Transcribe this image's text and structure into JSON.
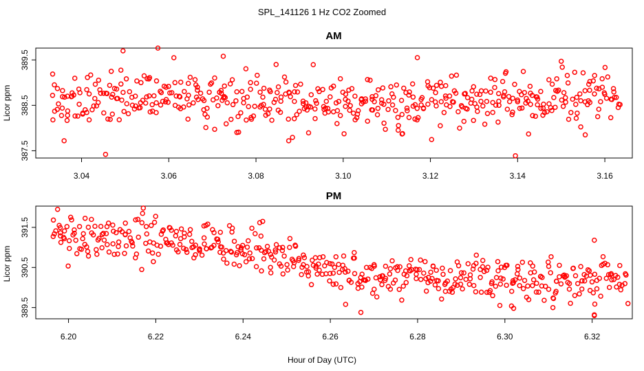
{
  "figure": {
    "title": "SPL_141126  1 Hz CO2 Zoomed",
    "xlabel": "Hour of Day (UTC)",
    "point_color": "#ff0000"
  },
  "chart_data": [
    {
      "type": "scatter",
      "title": "AM",
      "xlabel": "",
      "ylabel": "Licor ppm",
      "xlim": [
        3.0295,
        3.1663
      ],
      "ylim": [
        387.34,
        389.76
      ],
      "xticks": [
        3.04,
        3.06,
        3.08,
        3.1,
        3.12,
        3.14,
        3.16
      ],
      "xtick_labels": [
        "3.04",
        "3.06",
        "3.08",
        "3.10",
        "3.12",
        "3.14",
        "3.16"
      ],
      "yticks": [
        387.5,
        388.5,
        389.5
      ],
      "ytick_labels": [
        "387.5",
        "388.5",
        "389.5"
      ],
      "x_range": [
        3.033,
        3.1635
      ],
      "y_center": 388.62,
      "y_spread": 0.34,
      "n_points": 500,
      "highlights": [
        {
          "x": 3.0495,
          "y": 389.7
        },
        {
          "x": 3.0575,
          "y": 389.76
        },
        {
          "x": 3.0725,
          "y": 389.58
        },
        {
          "x": 3.117,
          "y": 389.55
        },
        {
          "x": 3.15,
          "y": 389.47
        },
        {
          "x": 3.036,
          "y": 387.72
        },
        {
          "x": 3.0455,
          "y": 387.42
        },
        {
          "x": 3.0875,
          "y": 387.72
        },
        {
          "x": 3.1395,
          "y": 387.39
        },
        {
          "x": 3.1135,
          "y": 387.87
        },
        {
          "x": 3.1425,
          "y": 387.87
        },
        {
          "x": 3.1555,
          "y": 387.85
        }
      ]
    },
    {
      "type": "scatter",
      "title": "PM",
      "xlabel": "Hour of Day (UTC)",
      "ylabel": "Licor ppm",
      "xlim": [
        6.1925,
        6.3292
      ],
      "ylim": [
        389.22,
        392.03
      ],
      "xticks": [
        6.2,
        6.22,
        6.24,
        6.26,
        6.28,
        6.3,
        6.32
      ],
      "xtick_labels": [
        "6.20",
        "6.22",
        "6.24",
        "6.26",
        "6.28",
        "6.30",
        "6.32"
      ],
      "yticks": [
        389.5,
        390.5,
        391.5
      ],
      "ytick_labels": [
        "389.5",
        "390.5",
        "391.5"
      ],
      "x_range": [
        6.1965,
        6.328
      ],
      "y_start": 391.05,
      "y_end": 390.2,
      "y_spread": 0.32,
      "n_points": 500,
      "highlights": [
        {
          "x": 6.1975,
          "y": 391.95
        },
        {
          "x": 6.2005,
          "y": 391.75
        },
        {
          "x": 6.2445,
          "y": 391.65
        },
        {
          "x": 6.2315,
          "y": 391.55
        },
        {
          "x": 6.3205,
          "y": 391.18
        },
        {
          "x": 6.267,
          "y": 389.38
        },
        {
          "x": 6.3205,
          "y": 389.3
        },
        {
          "x": 6.2635,
          "y": 389.58
        },
        {
          "x": 6.3205,
          "y": 389.32
        },
        {
          "x": 6.302,
          "y": 389.48
        },
        {
          "x": 6.311,
          "y": 389.5
        }
      ]
    }
  ]
}
